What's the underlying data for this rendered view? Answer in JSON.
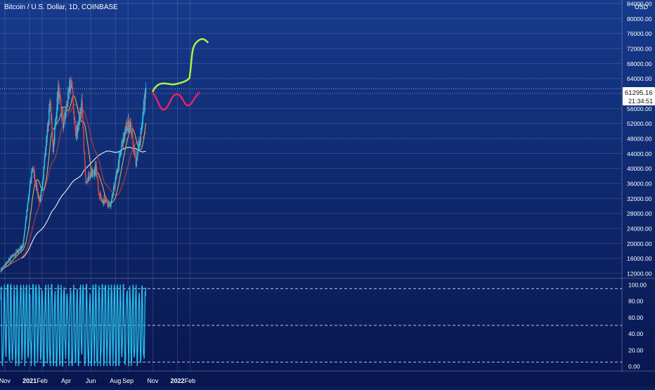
{
  "header": {
    "title": "Bitcoin / U.S. Dollar, 1D, COINBASE",
    "currency": "USD"
  },
  "price_tag": {
    "price": "61295.16",
    "countdown": "21:34:51"
  },
  "colors": {
    "background_top": "#163a8c",
    "background_bottom": "#08164f",
    "up_candle": "#26c6ee",
    "down_candle": "#e0413c",
    "ma_fast": "#c9b25a",
    "ma_mid": "#b5403c",
    "ma_slow": "#f2f2f2",
    "oscillator": "#27c0ec",
    "forecast_up": "#a7f542",
    "forecast_down": "#ec1f66",
    "text": "#ffffff"
  },
  "chart_data": [
    {
      "type": "candlestick",
      "title": "Bitcoin / U.S. Dollar, 1D, COINBASE",
      "x_ticks": [
        "Nov",
        "2021",
        "Feb",
        "Apr",
        "Jun",
        "Aug",
        "Sep",
        "Nov",
        "2022",
        "Feb"
      ],
      "y_ticks": [
        12000,
        16000,
        20000,
        24000,
        28000,
        32000,
        36000,
        40000,
        44000,
        48000,
        52000,
        56000,
        60000,
        64000,
        68000,
        72000,
        76000,
        80000,
        84000
      ],
      "ylim": [
        11500,
        87000
      ],
      "grid": true,
      "last_price": 61295.16,
      "approx_close_path": [
        {
          "x": "2020-10-22",
          "y": 12900
        },
        {
          "x": "2020-11-15",
          "y": 16000
        },
        {
          "x": "2020-12-15",
          "y": 19300
        },
        {
          "x": "2021-01-08",
          "y": 40500
        },
        {
          "x": "2021-01-27",
          "y": 30500
        },
        {
          "x": "2021-02-21",
          "y": 57500
        },
        {
          "x": "2021-02-28",
          "y": 45000
        },
        {
          "x": "2021-03-13",
          "y": 61200
        },
        {
          "x": "2021-03-25",
          "y": 51500
        },
        {
          "x": "2021-04-14",
          "y": 63500
        },
        {
          "x": "2021-04-25",
          "y": 48500
        },
        {
          "x": "2021-05-10",
          "y": 57000
        },
        {
          "x": "2021-05-19",
          "y": 37000
        },
        {
          "x": "2021-06-15",
          "y": 40000
        },
        {
          "x": "2021-06-22",
          "y": 32500
        },
        {
          "x": "2021-07-20",
          "y": 29800
        },
        {
          "x": "2021-08-23",
          "y": 49500
        },
        {
          "x": "2021-09-06",
          "y": 52500
        },
        {
          "x": "2021-09-21",
          "y": 41000
        },
        {
          "x": "2021-10-05",
          "y": 51500
        },
        {
          "x": "2021-10-15",
          "y": 61295
        }
      ]
    },
    {
      "type": "line",
      "title": "",
      "y_ticks": [
        0,
        20,
        40,
        60,
        80,
        100
      ],
      "ylim": [
        -5,
        110
      ],
      "bands": [
        5,
        50,
        95
      ]
    }
  ]
}
